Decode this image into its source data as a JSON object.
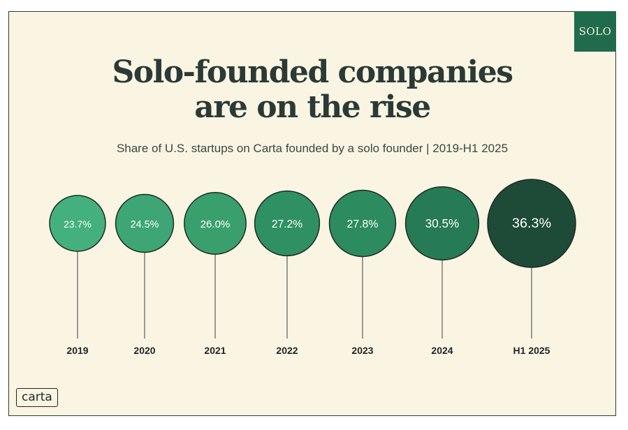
{
  "badge": "SOLO",
  "title_line1": "Solo-founded companies",
  "title_line2": "are on the rise",
  "subtitle": "Share of U.S. startups on Carta founded by a solo founder | 2019-H1 2025",
  "logo": "carta",
  "chart_data": {
    "type": "bubble",
    "categories": [
      "2019",
      "2020",
      "2021",
      "2022",
      "2023",
      "2024",
      "H1 2025"
    ],
    "values": [
      23.7,
      24.5,
      26.0,
      27.2,
      27.8,
      30.5,
      36.3
    ],
    "labels": [
      "23.7%",
      "24.5%",
      "26.0%",
      "27.2%",
      "27.8%",
      "30.5%",
      "36.3%"
    ],
    "unit": "%",
    "colors": [
      "#44b07e",
      "#3da674",
      "#39a06d",
      "#2f9163",
      "#2c8b5f",
      "#267a54",
      "#1d4b38"
    ]
  }
}
